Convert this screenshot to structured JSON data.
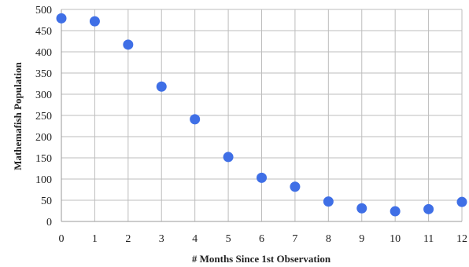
{
  "chart_data": {
    "type": "scatter",
    "title": "",
    "xlabel": "# Months Since 1st Observation",
    "ylabel": "Mathemafish Population",
    "xlim": [
      0,
      12
    ],
    "ylim": [
      0,
      500
    ],
    "x_ticks": [
      "0",
      "1",
      "2",
      "3",
      "4",
      "5",
      "6",
      "7",
      "8",
      "9",
      "10",
      "11",
      "12"
    ],
    "y_ticks": [
      "0",
      "50",
      "100",
      "150",
      "200",
      "250",
      "300",
      "350",
      "400",
      "450",
      "500"
    ],
    "grid": true,
    "legend": "none",
    "series": [
      {
        "color": "#3f6fe6",
        "points": [
          {
            "x": 0,
            "y": 479
          },
          {
            "x": 1,
            "y": 472
          },
          {
            "x": 2,
            "y": 417
          },
          {
            "x": 3,
            "y": 318
          },
          {
            "x": 4,
            "y": 241
          },
          {
            "x": 5,
            "y": 152
          },
          {
            "x": 6,
            "y": 103
          },
          {
            "x": 7,
            "y": 82
          },
          {
            "x": 8,
            "y": 47
          },
          {
            "x": 9,
            "y": 31
          },
          {
            "x": 10,
            "y": 24
          },
          {
            "x": 11,
            "y": 29
          },
          {
            "x": 12,
            "y": 46
          }
        ]
      }
    ]
  }
}
